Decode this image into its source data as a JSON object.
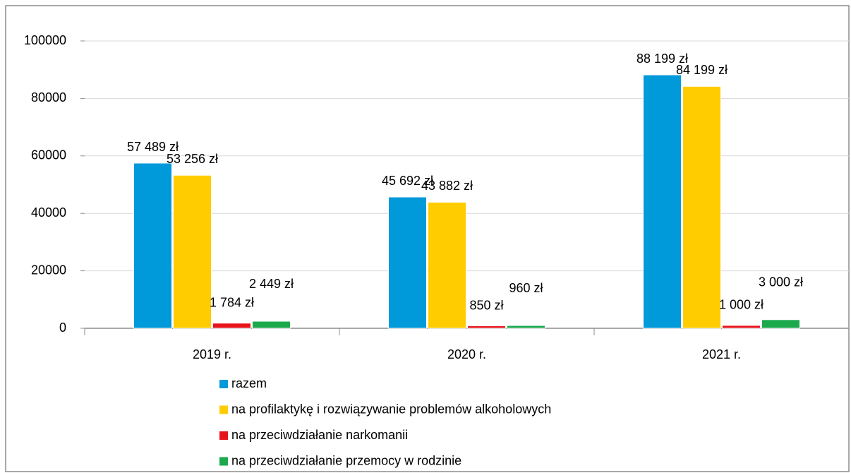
{
  "chart_data": {
    "type": "bar",
    "categories": [
      "2019 r.",
      "2020 r.",
      "2021 r."
    ],
    "series": [
      {
        "name": "razem",
        "color": "#0099da",
        "values": [
          57489,
          45692,
          88199
        ],
        "value_labels": [
          "57 489 zł",
          "45 692 zł",
          "88 199 zł"
        ]
      },
      {
        "name": "na profilaktykę i rozwiązywanie problemów alkoholowych",
        "color": "#ffcc00",
        "values": [
          53256,
          43882,
          84199
        ],
        "value_labels": [
          "53 256 zł",
          "43 882 zł",
          "84 199 zł"
        ]
      },
      {
        "name": "na przeciwdziałanie narkomanii",
        "color": "#e8141b",
        "values": [
          1784,
          850,
          1000
        ],
        "value_labels": [
          "1 784 zł",
          "850 zł",
          "1 000 zł"
        ]
      },
      {
        "name": "na przeciwdziałanie przemocy w rodzinie",
        "color": "#1ba94c",
        "values": [
          2449,
          960,
          3000
        ],
        "value_labels": [
          "2 449 zł",
          "960 zł",
          "3 000 zł"
        ]
      }
    ],
    "ylim": [
      0,
      100000
    ],
    "yticks": [
      0,
      20000,
      40000,
      60000,
      80000,
      100000
    ],
    "grid": true,
    "legend": "bottom"
  }
}
